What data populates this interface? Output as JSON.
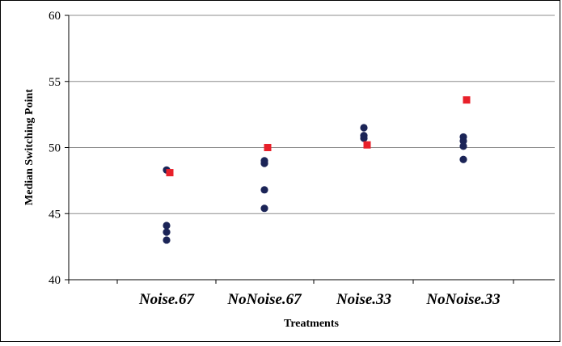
{
  "chart_data": {
    "type": "scatter",
    "title": "",
    "xlabel": "Treatments",
    "ylabel": "Median Switching Point",
    "categories": [
      "Noise.67",
      "NoNoise.67",
      "Noise.33",
      "NoNoise.33"
    ],
    "ylim": [
      40,
      60
    ],
    "yticks": [
      40,
      45,
      50,
      55,
      60
    ],
    "grid": true,
    "legend": "none",
    "series": [
      {
        "marker": "circle",
        "color": "#1b2457",
        "points": [
          {
            "category": "Noise.67",
            "y": 48.3
          },
          {
            "category": "Noise.67",
            "y": 44.1
          },
          {
            "category": "Noise.67",
            "y": 43.6
          },
          {
            "category": "Noise.67",
            "y": 43.0
          },
          {
            "category": "NoNoise.67",
            "y": 49.0
          },
          {
            "category": "NoNoise.67",
            "y": 48.8
          },
          {
            "category": "NoNoise.67",
            "y": 46.8
          },
          {
            "category": "NoNoise.67",
            "y": 45.4
          },
          {
            "category": "Noise.33",
            "y": 51.5
          },
          {
            "category": "Noise.33",
            "y": 50.9
          },
          {
            "category": "Noise.33",
            "y": 50.7
          },
          {
            "category": "NoNoise.33",
            "y": 50.8
          },
          {
            "category": "NoNoise.33",
            "y": 50.5
          },
          {
            "category": "NoNoise.33",
            "y": 50.1
          },
          {
            "category": "NoNoise.33",
            "y": 49.1
          }
        ]
      },
      {
        "marker": "square",
        "color": "#e8202a",
        "points": [
          {
            "category": "Noise.67",
            "y": 48.1
          },
          {
            "category": "NoNoise.67",
            "y": 50.0
          },
          {
            "category": "Noise.33",
            "y": 50.2
          },
          {
            "category": "NoNoise.33",
            "y": 53.6
          }
        ]
      }
    ]
  }
}
